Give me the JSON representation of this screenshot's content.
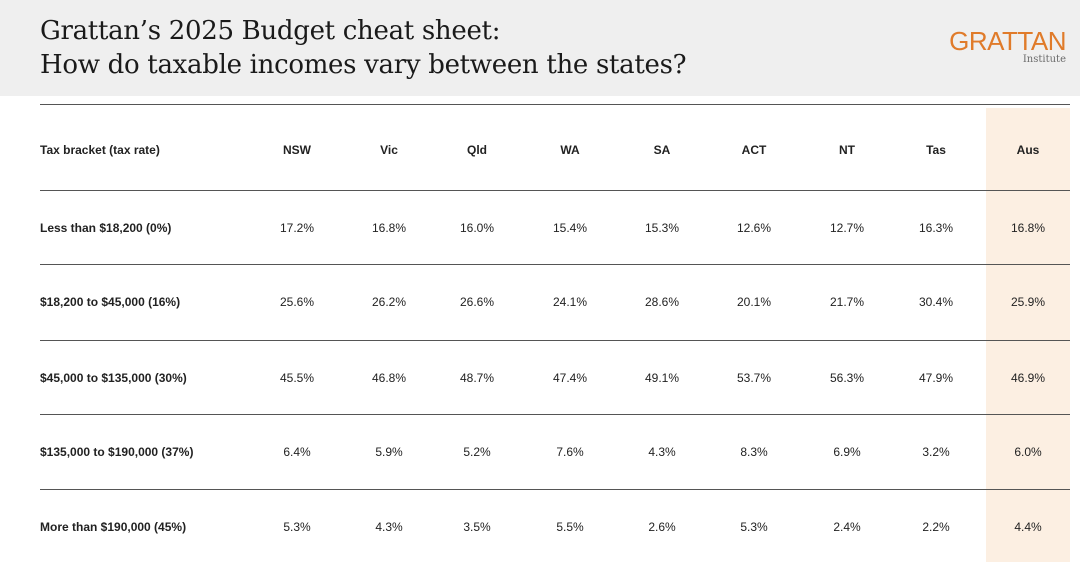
{
  "header": {
    "title_line1": "Grattan’s 2025 Budget cheat sheet:",
    "title_line2": "How do taxable incomes vary between the states?",
    "logo": "GRATTAN",
    "logo_sub": "Institute"
  },
  "colors": {
    "header_bg": "#efefef",
    "brand_orange": "#e07b2a",
    "aus_column_highlight": "#fcefe2"
  },
  "table": {
    "columns": [
      "Tax bracket (tax rate)",
      "NSW",
      "Vic",
      "Qld",
      "WA",
      "SA",
      "ACT",
      "NT",
      "Tas",
      "Aus"
    ],
    "rows": [
      {
        "label": "Less than $18,200 (0%)",
        "values": [
          "17.2%",
          "16.8%",
          "16.0%",
          "15.4%",
          "15.3%",
          "12.6%",
          "12.7%",
          "16.3%",
          "16.8%"
        ]
      },
      {
        "label": "$18,200 to $45,000 (16%)",
        "values": [
          "25.6%",
          "26.2%",
          "26.6%",
          "24.1%",
          "28.6%",
          "20.1%",
          "21.7%",
          "30.4%",
          "25.9%"
        ]
      },
      {
        "label": "$45,000 to $135,000 (30%)",
        "values": [
          "45.5%",
          "46.8%",
          "48.7%",
          "47.4%",
          "49.1%",
          "53.7%",
          "56.3%",
          "47.9%",
          "46.9%"
        ]
      },
      {
        "label": "$135,000 to $190,000 (37%)",
        "values": [
          "6.4%",
          "5.9%",
          "5.2%",
          "7.6%",
          "4.3%",
          "8.3%",
          "6.9%",
          "3.2%",
          "6.0%"
        ]
      },
      {
        "label": "More than $190,000 (45%)",
        "values": [
          "5.3%",
          "4.3%",
          "3.5%",
          "5.5%",
          "2.6%",
          "5.3%",
          "2.4%",
          "2.2%",
          "4.4%"
        ]
      }
    ]
  }
}
